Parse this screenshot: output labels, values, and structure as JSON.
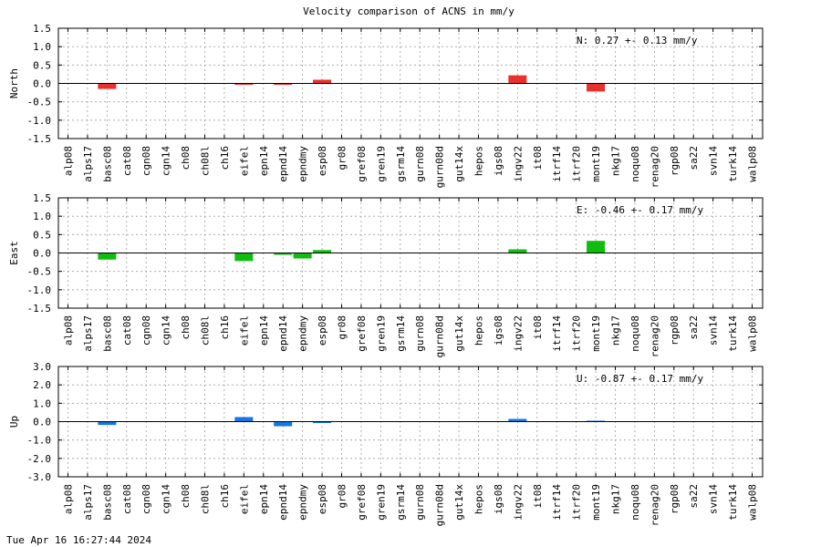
{
  "title": "Velocity comparison of ACNS in mm/y",
  "timestamp": "Tue Apr 16 16:27:44 2024",
  "chart_data": [
    {
      "type": "bar",
      "ylabel": "North",
      "annotation": "N:   0.27 +-  0.13 mm/y",
      "ylim": [
        -1.5,
        1.5
      ],
      "yticks": [
        -1.5,
        -1.0,
        -0.5,
        0.0,
        0.5,
        1.0,
        1.5
      ],
      "ytick_labels": [
        "-1.5",
        "-1.0",
        "-0.5",
        "0.0",
        "0.5",
        "1.0",
        "1.5"
      ],
      "grid": true,
      "color": "#e8302d",
      "categories": [
        "alp08",
        "alps17",
        "basc08",
        "cat08",
        "cgn08",
        "cgn14",
        "ch08",
        "ch08l",
        "ch16",
        "eifel",
        "epn14",
        "epnd14",
        "epndmy",
        "esp08",
        "gr08",
        "gref08",
        "gren19",
        "gsrm14",
        "gurn08",
        "gurn08d",
        "gut14x",
        "hepos",
        "igs08",
        "ingv22",
        "it08",
        "itrf14",
        "itrf20",
        "mont19",
        "nkg17",
        "noqu08",
        "renag20",
        "rgp08",
        "sa22",
        "svn14",
        "turk14",
        "walp08"
      ],
      "values": [
        0,
        0,
        -0.15,
        0,
        0,
        0,
        0,
        0,
        0,
        -0.02,
        0,
        -0.02,
        0,
        0.1,
        0,
        0,
        0,
        0,
        0,
        0,
        0,
        0,
        0,
        0.22,
        0,
        0,
        0,
        -0.22,
        0,
        0,
        0,
        0,
        0,
        0,
        0,
        0
      ]
    },
    {
      "type": "bar",
      "ylabel": "East",
      "annotation": "E:  -0.46 +-  0.17 mm/y",
      "ylim": [
        -1.5,
        1.5
      ],
      "yticks": [
        -1.5,
        -1.0,
        -0.5,
        0.0,
        0.5,
        1.0,
        1.5
      ],
      "ytick_labels": [
        "-1.5",
        "-1.0",
        "-0.5",
        "0.0",
        "0.5",
        "1.0",
        "1.5"
      ],
      "grid": true,
      "color": "#0fbd0f",
      "categories": [
        "alp08",
        "alps17",
        "basc08",
        "cat08",
        "cgn08",
        "cgn14",
        "ch08",
        "ch08l",
        "ch16",
        "eifel",
        "epn14",
        "epnd14",
        "epndmy",
        "esp08",
        "gr08",
        "gref08",
        "gren19",
        "gsrm14",
        "gurn08",
        "gurn08d",
        "gut14x",
        "hepos",
        "igs08",
        "ingv22",
        "it08",
        "itrf14",
        "itrf20",
        "mont19",
        "nkg17",
        "noqu08",
        "renag20",
        "rgp08",
        "sa22",
        "svn14",
        "turk14",
        "walp08"
      ],
      "values": [
        0,
        0,
        -0.18,
        0,
        0,
        0,
        0,
        0,
        0,
        -0.22,
        0,
        -0.05,
        -0.15,
        0.08,
        0,
        0,
        0,
        0,
        0,
        0,
        0,
        0,
        0,
        0.1,
        0,
        0,
        0,
        0.33,
        0,
        0,
        0,
        0,
        0,
        0,
        0,
        0
      ]
    },
    {
      "type": "bar",
      "ylabel": "Up",
      "annotation": "U:  -0.87 +-  0.17 mm/y",
      "ylim": [
        -3.0,
        3.0
      ],
      "yticks": [
        -3.0,
        -2.0,
        -1.0,
        0.0,
        1.0,
        2.0,
        3.0
      ],
      "ytick_labels": [
        "-3.0",
        "-2.0",
        "-1.0",
        "0.0",
        "1.0",
        "2.0",
        "3.0"
      ],
      "grid": true,
      "color": "#1277e3",
      "categories": [
        "alp08",
        "alps17",
        "basc08",
        "cat08",
        "cgn08",
        "cgn14",
        "ch08",
        "ch08l",
        "ch16",
        "eifel",
        "epn14",
        "epnd14",
        "epndmy",
        "esp08",
        "gr08",
        "gref08",
        "gren19",
        "gsrm14",
        "gurn08",
        "gurn08d",
        "gut14x",
        "hepos",
        "igs08",
        "ingv22",
        "it08",
        "itrf14",
        "itrf20",
        "mont19",
        "nkg17",
        "noqu08",
        "renag20",
        "rgp08",
        "sa22",
        "svn14",
        "turk14",
        "walp08"
      ],
      "values": [
        0,
        0,
        -0.18,
        0,
        0,
        0,
        0,
        0,
        0,
        0.25,
        0,
        -0.25,
        0,
        -0.05,
        0,
        0,
        0,
        0,
        0,
        0,
        0,
        0,
        0,
        0.15,
        0,
        0,
        0,
        0.05,
        0,
        0,
        0,
        0,
        0,
        0,
        0,
        0
      ]
    }
  ]
}
